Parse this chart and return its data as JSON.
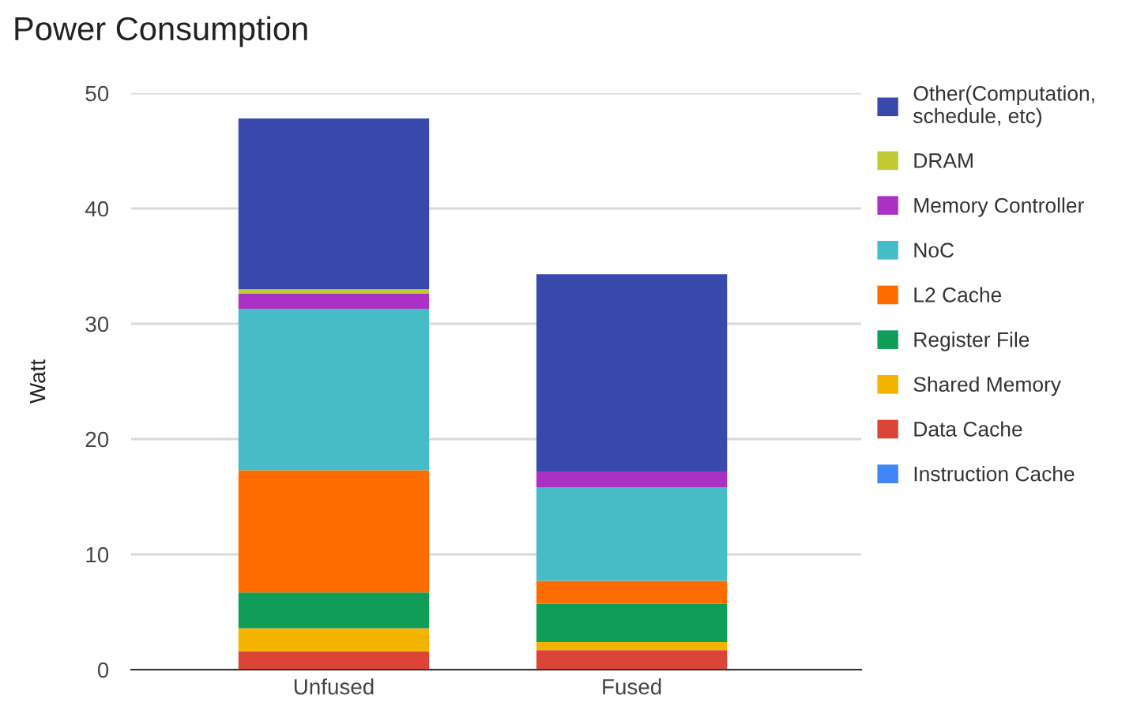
{
  "chart_data": {
    "type": "bar",
    "title": "Power Consumption",
    "ylabel": "Watt",
    "stacked": true,
    "categories": [
      "Unfused",
      "Fused"
    ],
    "series": [
      {
        "name": "Instruction Cache",
        "color": "#4285f4",
        "values": [
          null,
          null
        ]
      },
      {
        "name": "Data Cache",
        "color": "#db4437",
        "values": [
          1.6,
          1.7
        ]
      },
      {
        "name": "Shared Memory",
        "color": "#f4b400",
        "values": [
          2.0,
          0.7
        ]
      },
      {
        "name": "Register File",
        "color": "#0f9d58",
        "values": [
          3.1,
          3.3
        ]
      },
      {
        "name": "L2 Cache",
        "color": "#ff6d00",
        "values": [
          10.6,
          2.0
        ]
      },
      {
        "name": "NoC",
        "color": "#46bdc6",
        "values": [
          14.0,
          8.1
        ]
      },
      {
        "name": "Memory Controller",
        "color": "#ab30c4",
        "values": [
          1.3,
          1.4
        ]
      },
      {
        "name": "DRAM",
        "color": "#c0ca33",
        "values": [
          0.4,
          null
        ]
      },
      {
        "name": "Other(Computation,\nschedule, etc)",
        "color": "#3949ab",
        "values": [
          14.8,
          17.1
        ]
      }
    ],
    "ylim": [
      0,
      50
    ],
    "yticks": [
      0,
      10,
      20,
      30,
      40,
      50
    ],
    "grid": "y",
    "legend": "right"
  }
}
